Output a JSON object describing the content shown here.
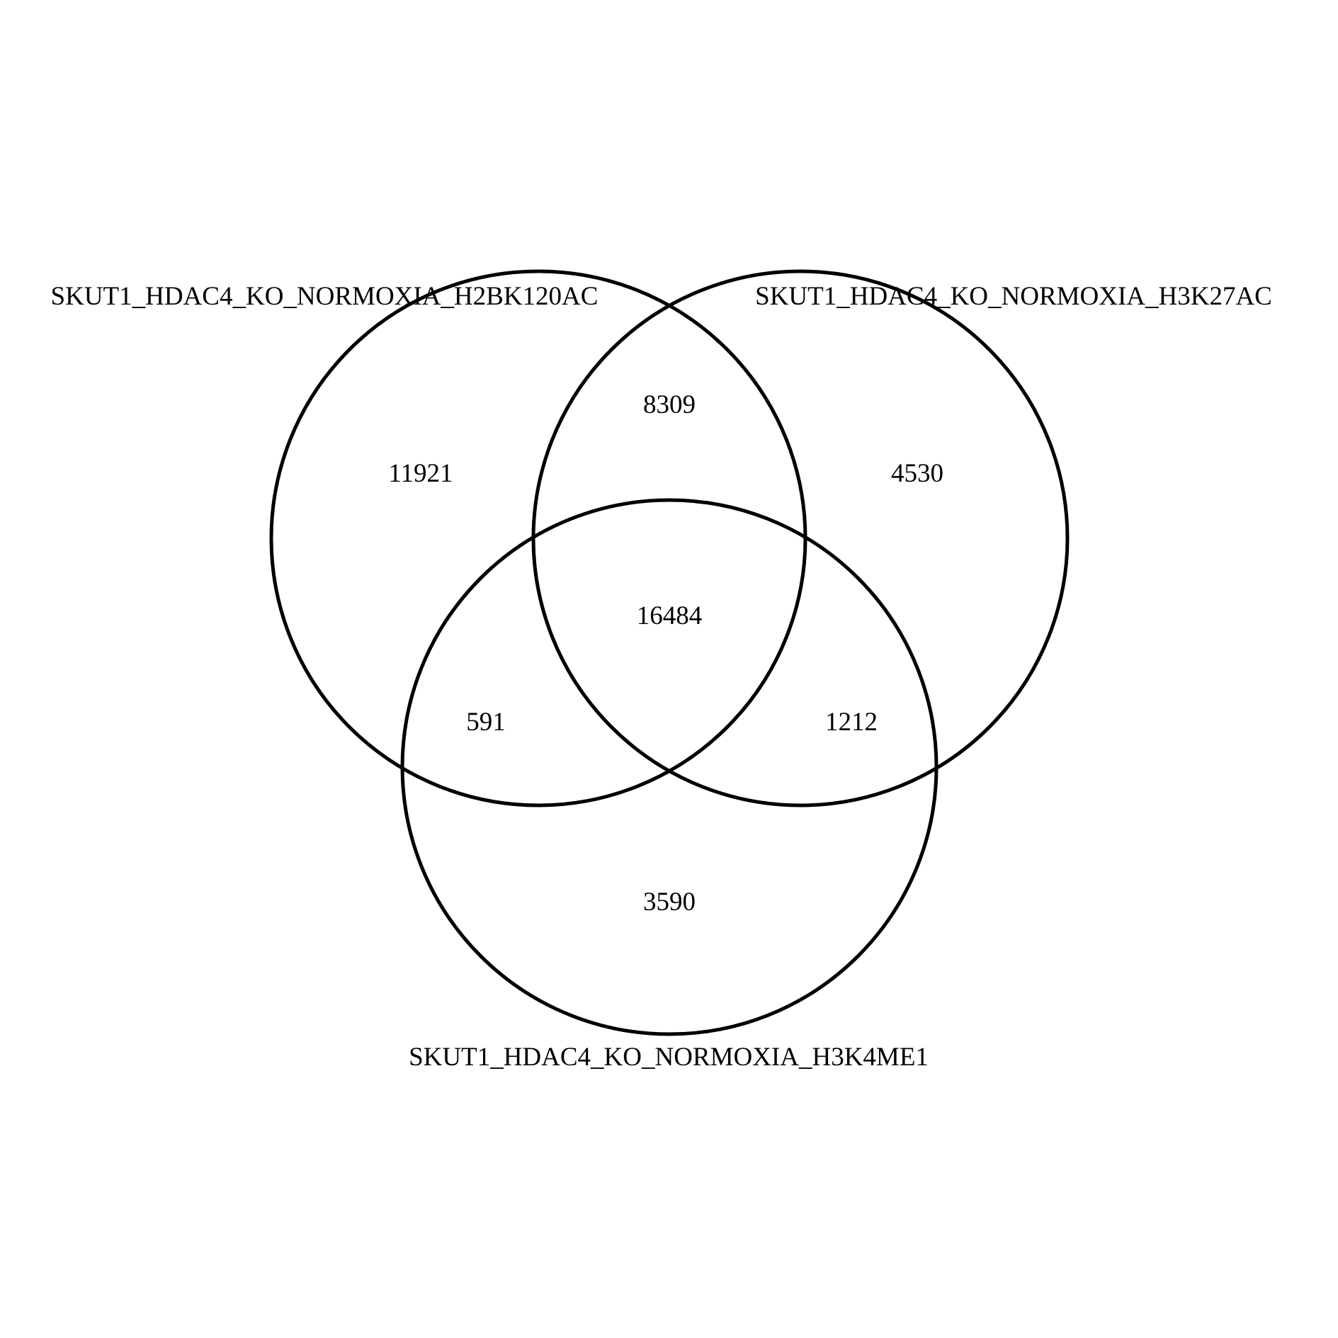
{
  "diagram": {
    "type": "venn-3",
    "sets": [
      {
        "id": "A",
        "label": "SKUT1_HDAC4_KO_NORMOXIA_H2BK120AC"
      },
      {
        "id": "B",
        "label": "SKUT1_HDAC4_KO_NORMOXIA_H3K27AC"
      },
      {
        "id": "C",
        "label": "SKUT1_HDAC4_KO_NORMOXIA_H3K4ME1"
      }
    ],
    "regions": {
      "A_only": "11921",
      "B_only": "4530",
      "C_only": "3590",
      "A_and_B": "8309",
      "A_and_C": "591",
      "B_and_C": "1212",
      "A_and_B_and_C": "16484"
    },
    "colors": {
      "stroke": "#000000",
      "background": "#ffffff",
      "text": "#000000"
    }
  }
}
